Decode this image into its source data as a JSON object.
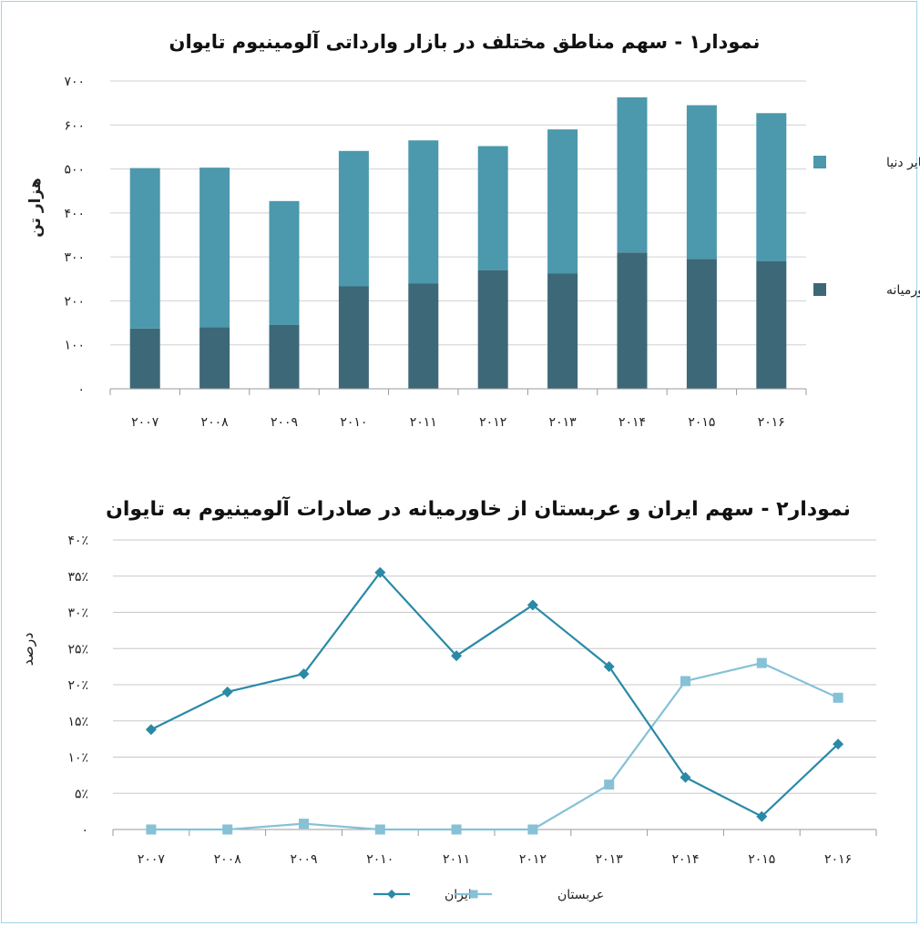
{
  "chart_data": [
    {
      "type": "bar",
      "stacked": true,
      "title": "نمودار۱ - سهم مناطق مختلف در بازار وارداتی آلومینیوم تایوان",
      "ylabel": "هزار تن",
      "xlabel": "",
      "ylim": [
        0,
        700
      ],
      "yticks": [
        "۰",
        "۱۰۰",
        "۲۰۰",
        "۳۰۰",
        "۴۰۰",
        "۵۰۰",
        "۶۰۰",
        "۷۰۰"
      ],
      "categories": [
        "۲۰۰۷",
        "۲۰۰۸",
        "۲۰۰۹",
        "۲۰۱۰",
        "۲۰۱۱",
        "۲۰۱۲",
        "۲۰۱۳",
        "۲۰۱۴",
        "۲۰۱۵",
        "۲۰۱۶"
      ],
      "series": [
        {
          "name": "خاورمیانه",
          "color": "#3d6878",
          "values": [
            137,
            140,
            145,
            233,
            240,
            270,
            262,
            310,
            295,
            290
          ]
        },
        {
          "name": "سایر دنیا",
          "color": "#4c98ad",
          "values": [
            365,
            363,
            282,
            308,
            325,
            282,
            328,
            353,
            350,
            337
          ]
        }
      ],
      "grid": true,
      "legend": "right"
    },
    {
      "type": "line",
      "title": "نمودار۲ - سهم ایران و عربستان از خاورمیانه در صادرات آلومینیوم به تایوان",
      "ylabel": "درصد",
      "xlabel": "",
      "ylim": [
        0,
        40
      ],
      "yticks": [
        "۰",
        "۵٪",
        "۱۰٪",
        "۱۵٪",
        "۲۰٪",
        "۲۵٪",
        "۳۰٪",
        "۳۵٪",
        "۴۰٪"
      ],
      "categories": [
        "۲۰۰۷",
        "۲۰۰۸",
        "۲۰۰۹",
        "۲۰۱۰",
        "۲۰۱۱",
        "۲۰۱۲",
        "۲۰۱۳",
        "۲۰۱۴",
        "۲۰۱۵",
        "۲۰۱۶"
      ],
      "series": [
        {
          "name": "ایران",
          "color": "#2a8aa6",
          "marker": "diamond",
          "values": [
            13.8,
            19,
            21.5,
            35.5,
            24,
            31,
            22.5,
            7.2,
            1.8,
            11.8
          ]
        },
        {
          "name": "عربستان",
          "color": "#86c1d6",
          "marker": "square",
          "values": [
            0,
            0,
            0.8,
            0,
            0,
            0,
            6.2,
            20.5,
            23,
            18.2
          ]
        }
      ],
      "grid": true,
      "legend": "bottom"
    }
  ]
}
